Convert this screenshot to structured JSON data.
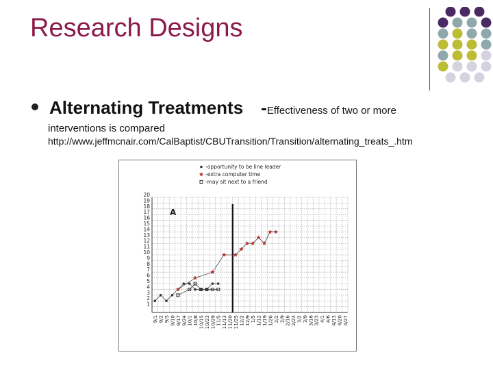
{
  "slide": {
    "title": "Research Designs",
    "bullet": {
      "heading": "Alternating Treatments",
      "dash": "-",
      "text_inline": "Effectiveness of two or more",
      "text_cont": "interventions is compared",
      "url": "http://www.jeffmcnair.com/CalBaptist/CBUTransition/Transition/alternating_treats_.htm"
    }
  },
  "theme": {
    "title_color": "#8b1a4a",
    "dot_colors": [
      "#4b2a63",
      "#8fa8ac",
      "#bcbc35",
      "#d6d3e0"
    ]
  },
  "chart_data": {
    "type": "line",
    "panel_label": "A",
    "legend": [
      "-opportunity to be line leader",
      "-extra computer time",
      "-may sit next to a friend"
    ],
    "ylim": [
      0,
      20
    ],
    "yticks": [
      1,
      2,
      3,
      4,
      5,
      6,
      7,
      8,
      9,
      10,
      11,
      12,
      13,
      14,
      15,
      16,
      17,
      18,
      19,
      20
    ],
    "categories": [
      "9/1",
      "9/2",
      "9/3",
      "9/10",
      "9/17",
      "9/24",
      "10/1",
      "10/8",
      "10/15",
      "10/23",
      "10/29",
      "11/5",
      "11/13",
      "11/20",
      "11/25",
      "12/2",
      "12/9",
      "1/5",
      "1/12",
      "1/19",
      "1/26",
      "2/2",
      "2/9",
      "2/16",
      "2/23",
      "3/2",
      "3/9",
      "3/16",
      "3/23",
      "4/1",
      "4/6",
      "4/13",
      "4/20",
      "4/27"
    ],
    "tick_labels": [
      "9/1",
      "9/2",
      "9/3",
      "9/10",
      "9/17",
      "9/24",
      "10/1",
      "10/8",
      "10/15",
      "10/23",
      "10/29",
      "11/5",
      "11/13",
      "11/20",
      "11/25",
      "12/2",
      "12/9",
      "1/5",
      "1/12",
      "1/19",
      "1/26",
      "2/2",
      "2/9",
      "2/16",
      "2/23",
      "3/2",
      "3/9",
      "3/16",
      "3/23",
      "4/1",
      "4/6",
      "4/13",
      "4/20",
      "4/27"
    ],
    "phase_line_after": "11/20",
    "series": [
      {
        "name": "-opportunity to be line leader",
        "marker": "dot",
        "color": "#333333",
        "points": [
          [
            "9/1",
            2
          ],
          [
            "9/2",
            3
          ],
          [
            "9/3",
            2
          ],
          [
            "9/10",
            3
          ],
          [
            "9/17",
            4
          ],
          [
            "9/24",
            5
          ],
          [
            "10/1",
            5
          ],
          [
            "10/8",
            4
          ],
          [
            "10/15",
            4
          ],
          [
            "10/23",
            4
          ],
          [
            "10/29",
            5
          ],
          [
            "11/5",
            5
          ]
        ]
      },
      {
        "name": "-extra computer time",
        "marker": "star",
        "color": "#b0302a",
        "points": [
          [
            "9/17",
            4
          ],
          [
            "10/8",
            6
          ],
          [
            "10/29",
            7
          ],
          [
            "11/13",
            10
          ],
          [
            "11/25",
            10
          ],
          [
            "12/2",
            11
          ],
          [
            "12/9",
            12
          ],
          [
            "1/5",
            12
          ],
          [
            "1/12",
            13
          ],
          [
            "1/19",
            12
          ],
          [
            "1/26",
            14
          ],
          [
            "2/2",
            14
          ]
        ]
      },
      {
        "name": "-may sit next to a friend",
        "marker": "square",
        "color": "#333333",
        "points": [
          [
            "9/17",
            3
          ],
          [
            "10/1",
            4
          ],
          [
            "10/8",
            5
          ],
          [
            "10/15",
            4
          ],
          [
            "10/23",
            4
          ],
          [
            "10/29",
            4
          ],
          [
            "11/5",
            4
          ]
        ]
      }
    ]
  }
}
